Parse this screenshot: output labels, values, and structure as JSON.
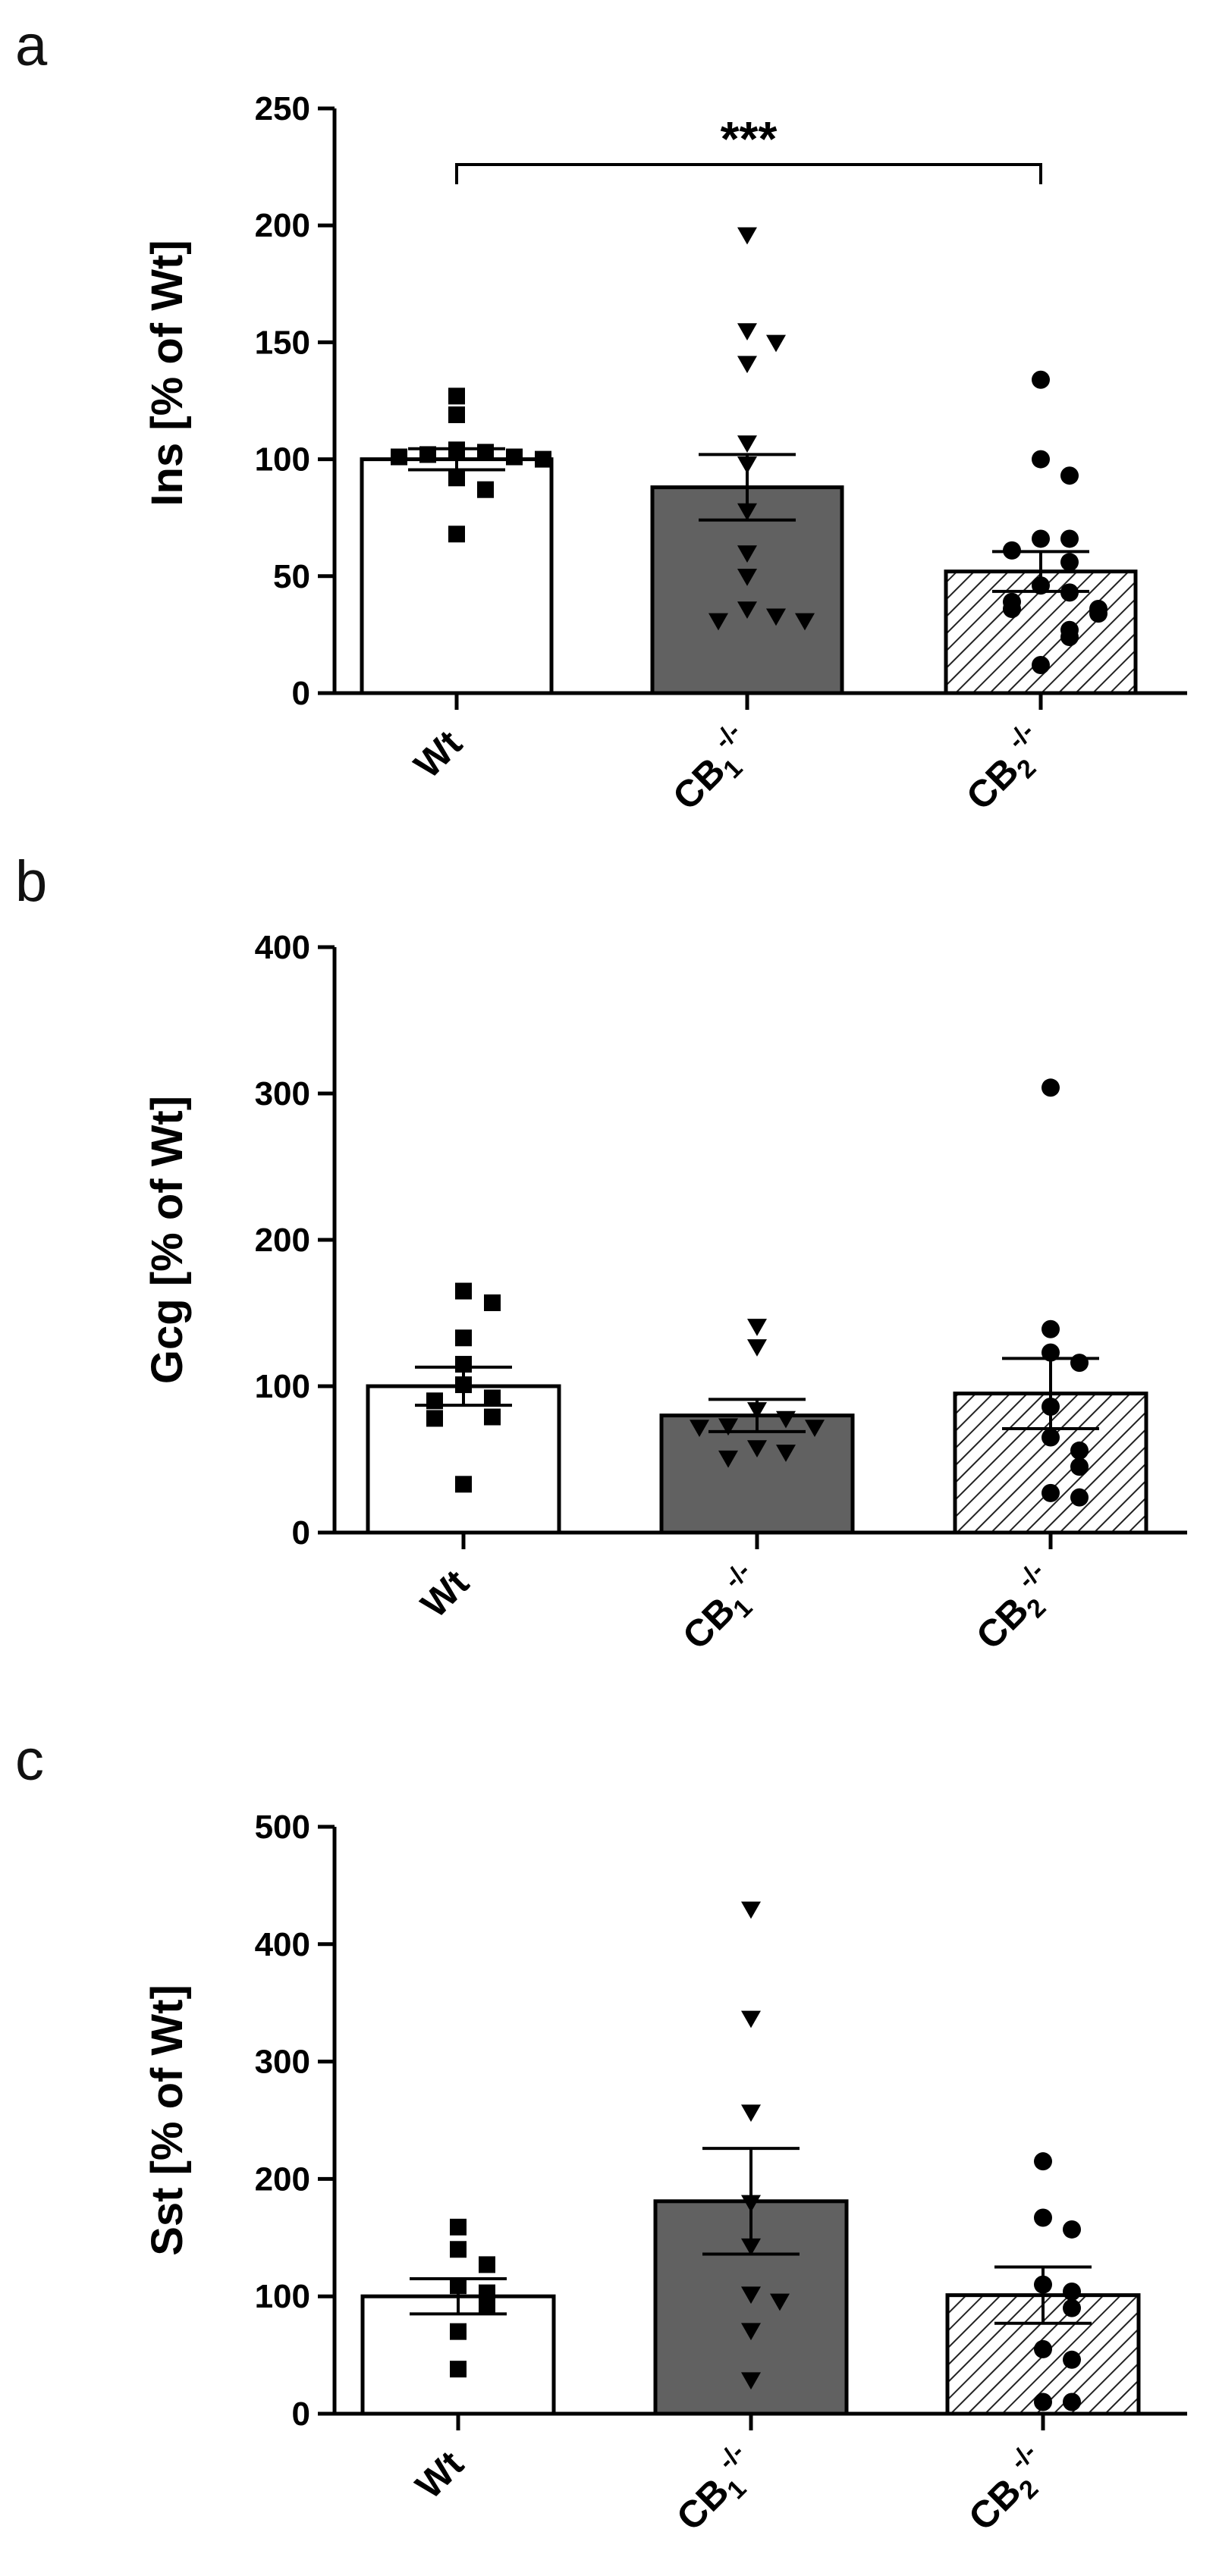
{
  "chart_data": [
    {
      "type": "bar",
      "panel_label": "a",
      "ylabel": "Ins [% of Wt]",
      "ylim": [
        0,
        250
      ],
      "yticks": [
        "0",
        "50",
        "100",
        "150",
        "200",
        "250"
      ],
      "categories": [
        {
          "base": "Wt",
          "sub": "",
          "sup": ""
        },
        {
          "base": "CB",
          "sub": "1",
          "sup": "-/-"
        },
        {
          "base": "CB",
          "sub": "2",
          "sup": "-/-"
        }
      ],
      "bars": [
        {
          "mean": 100,
          "sem": 4.5,
          "fill": "#ffffff",
          "pattern": "none",
          "marker": "square",
          "points": [
            103,
            104,
            102,
            101,
            100,
            101,
            127,
            119,
            92,
            87,
            68
          ]
        },
        {
          "mean": 88,
          "sem": 14,
          "fill": "#616161",
          "pattern": "none",
          "marker": "triangle-down",
          "points": [
            196,
            155,
            150,
            141,
            107,
            98,
            78,
            60,
            50,
            36,
            33,
            31,
            31
          ]
        },
        {
          "mean": 52,
          "sem": 8.5,
          "fill": "#ffffff",
          "pattern": "hatch",
          "marker": "circle",
          "points": [
            134,
            100,
            93,
            66,
            66,
            61,
            56,
            46,
            43,
            39,
            36,
            36,
            34,
            27,
            24,
            12
          ]
        }
      ],
      "significance": {
        "from": 0,
        "to": 2,
        "label": "***",
        "y": 226
      }
    },
    {
      "type": "bar",
      "panel_label": "b",
      "ylabel": "Gcg [% of Wt]",
      "ylim": [
        0,
        400
      ],
      "yticks": [
        "0",
        "100",
        "200",
        "300",
        "400"
      ],
      "categories": [
        {
          "base": "Wt",
          "sub": "",
          "sup": ""
        },
        {
          "base": "CB",
          "sub": "1",
          "sup": "-/-"
        },
        {
          "base": "CB",
          "sub": "2",
          "sup": "-/-"
        }
      ],
      "bars": [
        {
          "mean": 100,
          "sem": 13,
          "fill": "#ffffff",
          "pattern": "none",
          "marker": "square",
          "points": [
            165,
            157,
            133,
            115,
            101,
            92,
            90,
            79,
            78,
            33
          ]
        },
        {
          "mean": 80,
          "sem": 11,
          "fill": "#616161",
          "pattern": "none",
          "marker": "triangle-down",
          "points": [
            141,
            127,
            84,
            78,
            73,
            72,
            72,
            58,
            55,
            51
          ]
        },
        {
          "mean": 95,
          "sem": 24,
          "fill": "#ffffff",
          "pattern": "hatch",
          "marker": "circle",
          "points": [
            304,
            139,
            123,
            116,
            86,
            65,
            56,
            45,
            27,
            24
          ]
        }
      ],
      "significance": null
    },
    {
      "type": "bar",
      "panel_label": "c",
      "ylabel": "Sst [% of Wt]",
      "ylim": [
        0,
        500
      ],
      "yticks": [
        "0",
        "100",
        "200",
        "300",
        "400",
        "500"
      ],
      "categories": [
        {
          "base": "Wt",
          "sub": "",
          "sup": ""
        },
        {
          "base": "CB",
          "sub": "1",
          "sup": "-/-"
        },
        {
          "base": "CB",
          "sub": "2",
          "sup": "-/-"
        }
      ],
      "bars": [
        {
          "mean": 100,
          "sem": 15,
          "fill": "#ffffff",
          "pattern": "none",
          "marker": "square",
          "points": [
            159,
            140,
            127,
            109,
            103,
            92,
            70,
            38
          ]
        },
        {
          "mean": 181,
          "sem": 45,
          "fill": "#616161",
          "pattern": "none",
          "marker": "triangle-down",
          "points": [
            430,
            337,
            257,
            180,
            143,
            102,
            96,
            71,
            29
          ]
        },
        {
          "mean": 101,
          "sem": 24,
          "fill": "#ffffff",
          "pattern": "hatch",
          "marker": "circle",
          "points": [
            215,
            167,
            157,
            110,
            104,
            90,
            55,
            46,
            10,
            10
          ]
        }
      ],
      "significance": null
    }
  ]
}
